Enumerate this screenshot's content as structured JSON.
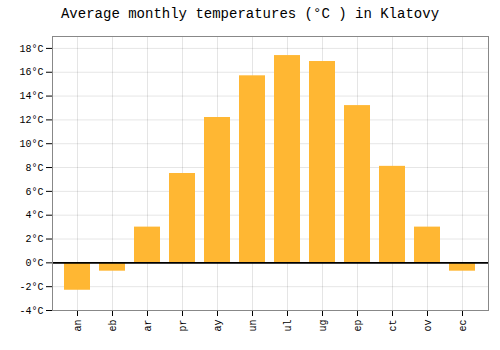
{
  "chart_data": {
    "type": "bar",
    "title": "Average monthly temperatures (°C ) in Klatovy",
    "categories": [
      "an",
      "eb",
      "ar",
      "pr",
      "ay",
      "un",
      "ul",
      "ug",
      "ep",
      "ct",
      "ov",
      "ec"
    ],
    "values": [
      -2.3,
      -0.7,
      3.0,
      7.5,
      12.2,
      15.7,
      17.4,
      16.9,
      13.2,
      8.1,
      3.0,
      -0.7
    ],
    "color": "#FFB733",
    "ylim": [
      -4,
      19
    ],
    "yticks": [
      {
        "value": -4,
        "label": "-4°C"
      },
      {
        "value": -2,
        "label": "-2°C"
      },
      {
        "value": 0,
        "label": "0°C"
      },
      {
        "value": 2,
        "label": "2°C"
      },
      {
        "value": 4,
        "label": "4°C"
      },
      {
        "value": 6,
        "label": "6°C"
      },
      {
        "value": 8,
        "label": "8°C"
      },
      {
        "value": 10,
        "label": "10°C"
      },
      {
        "value": 12,
        "label": "12°C"
      },
      {
        "value": 14,
        "label": "14°C"
      },
      {
        "value": 16,
        "label": "16°C"
      },
      {
        "value": 18,
        "label": "18°C"
      }
    ],
    "grid": true
  }
}
